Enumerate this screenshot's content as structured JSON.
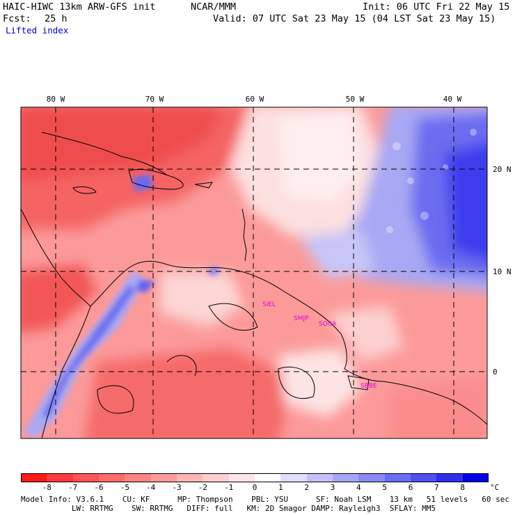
{
  "header": {
    "model": "HAIC-HIWC 13km ARW-GFS init",
    "center": "NCAR/MMM",
    "init": "Init: 06 UTC Fri 22 May 15",
    "fcst_label": "Fcst:",
    "fcst_value": "25 h",
    "valid": "Valid: 07 UTC Sat 23 May 15 (04 LST Sat 23 May 15)",
    "field": "Lifted index"
  },
  "map": {
    "lon_labels": [
      "80 W",
      "70 W",
      "60 W",
      "50 W",
      "40 W"
    ],
    "lat_labels": [
      "20 N",
      "10 N",
      "0"
    ],
    "stations": [
      "SIEL",
      "SMJP",
      "SOCA",
      "SBBE"
    ],
    "colors": {
      "strong_red": "#ee3a3a",
      "pale": "#ffffff",
      "strong_blue": "#2222ee"
    }
  },
  "colorbar": {
    "labels": [
      "-8",
      "-7",
      "-6",
      "-5",
      "-4",
      "-3",
      "-2",
      "-1",
      "0",
      "1",
      "2",
      "3",
      "4",
      "5",
      "6",
      "7",
      "8"
    ],
    "unit": "°C",
    "colors": [
      "#ff1a1a",
      "#fe3b3b",
      "#fd5454",
      "#fc6c6c",
      "#fc8484",
      "#fc9c9c",
      "#fdb5b5",
      "#fecdcd",
      "#ffe5e5",
      "#ffffff",
      "#dedeff",
      "#c2c2fb",
      "#a6a6f8",
      "#8a8af5",
      "#6c6cf2",
      "#4f4fef",
      "#2f2fec",
      "#0000e6"
    ]
  },
  "footer": {
    "line1": "Model Info: V3.6.1    CU: KF      MP: Thompson    PBL: YSU      SF: Noah LSM    13 km   51 levels   60 sec",
    "line2": "           LW: RRTMG    SW: RRTMG   DIFF: full   KM: 2D Smagor DAMP: Rayleigh3  SFLAY: MM5"
  }
}
